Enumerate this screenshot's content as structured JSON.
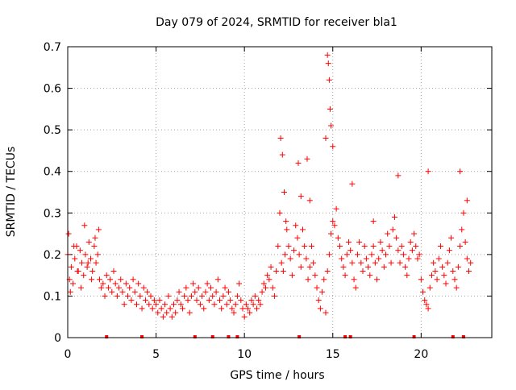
{
  "chart_data": {
    "type": "scatter",
    "title": "Day 079 of 2024, SRMTID for receiver bla1",
    "xlabel": "GPS time / hours",
    "ylabel": "SRMTID / TECUs",
    "xlim": [
      0,
      24
    ],
    "ylim": [
      0,
      0.7
    ],
    "xticks": [
      0,
      5,
      10,
      15,
      20
    ],
    "xtick_labels": [
      "0",
      "5",
      "10",
      "15",
      "20"
    ],
    "yticks": [
      0,
      0.1,
      0.2,
      0.3,
      0.4,
      0.5,
      0.6,
      0.7
    ],
    "ytick_labels": [
      "0",
      "0.1",
      "0.2",
      "0.3",
      "0.4",
      "0.5",
      "0.6",
      "0.7"
    ],
    "grid": true,
    "marker": "+",
    "point_color": "#ff0000",
    "series": [
      {
        "name": "SRMTID",
        "x": [
          0.0,
          0.1,
          0.2,
          0.3,
          0.4,
          0.5,
          0.6,
          0.7,
          0.8,
          0.9,
          1.0,
          1.1,
          1.2,
          1.3,
          1.4,
          1.5,
          1.6,
          1.7,
          1.8,
          1.9,
          2.0,
          2.1,
          2.2,
          2.3,
          2.4,
          2.5,
          2.6,
          2.7,
          2.8,
          2.9,
          3.0,
          3.1,
          3.2,
          3.3,
          3.4,
          3.5,
          3.6,
          3.7,
          3.8,
          3.9,
          4.0,
          4.1,
          4.2,
          4.3,
          4.4,
          4.5,
          4.6,
          4.7,
          4.8,
          4.9,
          5.0,
          5.1,
          5.2,
          5.3,
          5.4,
          5.5,
          5.6,
          5.7,
          5.8,
          5.9,
          6.0,
          6.1,
          6.2,
          6.3,
          6.4,
          6.5,
          6.6,
          6.7,
          6.8,
          6.9,
          7.0,
          7.1,
          7.2,
          7.3,
          7.4,
          7.5,
          7.6,
          7.7,
          7.8,
          7.9,
          8.0,
          8.1,
          8.2,
          8.3,
          8.4,
          8.5,
          8.6,
          8.7,
          8.8,
          8.9,
          9.0,
          9.1,
          9.2,
          9.3,
          9.4,
          9.5,
          9.6,
          9.7,
          9.8,
          9.9,
          10.0,
          10.1,
          10.2,
          10.3,
          10.4,
          10.5,
          10.6,
          10.7,
          10.8,
          10.9,
          11.0,
          11.1,
          11.2,
          11.3,
          11.4,
          11.5,
          11.6,
          11.7,
          11.8,
          11.9,
          12.0,
          12.1,
          12.2,
          12.3,
          12.4,
          12.5,
          12.6,
          12.7,
          12.8,
          12.9,
          13.0,
          13.1,
          13.2,
          13.3,
          13.4,
          13.5,
          13.6,
          13.7,
          13.8,
          13.9,
          14.0,
          14.1,
          14.2,
          14.3,
          14.4,
          14.5,
          14.6,
          14.7,
          14.8,
          14.9,
          15.0,
          15.1,
          15.2,
          15.3,
          15.4,
          15.5,
          15.6,
          15.7,
          15.8,
          15.9,
          16.0,
          16.1,
          16.2,
          16.3,
          16.4,
          16.5,
          16.6,
          16.7,
          16.8,
          16.9,
          17.0,
          17.1,
          17.2,
          17.3,
          17.4,
          17.5,
          17.6,
          17.7,
          17.8,
          17.9,
          18.0,
          18.1,
          18.2,
          18.3,
          18.4,
          18.5,
          18.6,
          18.7,
          18.8,
          18.9,
          19.0,
          19.1,
          19.2,
          19.3,
          19.4,
          19.5,
          19.6,
          19.7,
          19.8,
          19.9,
          20.0,
          20.1,
          20.2,
          20.3,
          20.4,
          20.5,
          20.6,
          20.7,
          20.8,
          20.9,
          21.0,
          21.1,
          21.2,
          21.3,
          21.4,
          21.5,
          21.6,
          21.7,
          21.8,
          21.9,
          22.0,
          22.1,
          22.2,
          22.3,
          22.4,
          22.5,
          22.6,
          22.7,
          22.8,
          0.05,
          0.15,
          0.35,
          0.55,
          0.75,
          0.95,
          1.15,
          1.35,
          1.55,
          1.75,
          12.05,
          12.15,
          12.25,
          12.35,
          13.05,
          13.2,
          13.55,
          13.7,
          14.6,
          14.7,
          14.75,
          14.8,
          14.85,
          14.9,
          15.0,
          18.7,
          20.4,
          22.2,
          22.6,
          16.1,
          17.3
        ],
        "y": [
          0.2,
          0.14,
          0.17,
          0.13,
          0.19,
          0.22,
          0.16,
          0.21,
          0.18,
          0.15,
          0.2,
          0.17,
          0.23,
          0.19,
          0.16,
          0.22,
          0.18,
          0.2,
          0.14,
          0.12,
          0.13,
          0.1,
          0.15,
          0.12,
          0.14,
          0.11,
          0.16,
          0.13,
          0.1,
          0.12,
          0.14,
          0.11,
          0.08,
          0.13,
          0.1,
          0.12,
          0.09,
          0.14,
          0.11,
          0.08,
          0.13,
          0.1,
          0.07,
          0.12,
          0.09,
          0.11,
          0.08,
          0.1,
          0.07,
          0.09,
          0.08,
          0.06,
          0.09,
          0.07,
          0.05,
          0.08,
          0.06,
          0.1,
          0.07,
          0.05,
          0.08,
          0.06,
          0.09,
          0.11,
          0.08,
          0.07,
          0.1,
          0.12,
          0.09,
          0.06,
          0.1,
          0.13,
          0.11,
          0.09,
          0.12,
          0.08,
          0.1,
          0.07,
          0.11,
          0.13,
          0.09,
          0.12,
          0.1,
          0.08,
          0.11,
          0.14,
          0.09,
          0.07,
          0.1,
          0.12,
          0.08,
          0.11,
          0.09,
          0.07,
          0.06,
          0.08,
          0.1,
          0.13,
          0.09,
          0.07,
          0.05,
          0.08,
          0.07,
          0.06,
          0.09,
          0.08,
          0.1,
          0.07,
          0.09,
          0.08,
          0.11,
          0.13,
          0.12,
          0.15,
          0.14,
          0.17,
          0.12,
          0.1,
          0.16,
          0.22,
          0.3,
          0.18,
          0.16,
          0.2,
          0.26,
          0.22,
          0.19,
          0.15,
          0.21,
          0.27,
          0.24,
          0.2,
          0.17,
          0.26,
          0.22,
          0.19,
          0.14,
          0.17,
          0.22,
          0.18,
          0.15,
          0.12,
          0.09,
          0.07,
          0.11,
          0.14,
          0.06,
          0.16,
          0.2,
          0.25,
          0.28,
          0.27,
          0.31,
          0.24,
          0.22,
          0.19,
          0.17,
          0.15,
          0.2,
          0.23,
          0.21,
          0.18,
          0.14,
          0.12,
          0.2,
          0.23,
          0.18,
          0.16,
          0.22,
          0.19,
          0.17,
          0.15,
          0.2,
          0.22,
          0.18,
          0.14,
          0.19,
          0.23,
          0.21,
          0.17,
          0.2,
          0.25,
          0.22,
          0.18,
          0.26,
          0.29,
          0.24,
          0.21,
          0.18,
          0.22,
          0.2,
          0.17,
          0.15,
          0.19,
          0.23,
          0.21,
          0.25,
          0.22,
          0.19,
          0.2,
          0.14,
          0.11,
          0.09,
          0.08,
          0.07,
          0.12,
          0.15,
          0.18,
          0.16,
          0.14,
          0.19,
          0.22,
          0.17,
          0.15,
          0.13,
          0.18,
          0.21,
          0.24,
          0.16,
          0.14,
          0.12,
          0.17,
          0.22,
          0.26,
          0.3,
          0.23,
          0.19,
          0.16,
          0.18,
          0.25,
          0.11,
          0.22,
          0.16,
          0.12,
          0.27,
          0.18,
          0.14,
          0.24,
          0.26,
          0.48,
          0.44,
          0.35,
          0.28,
          0.42,
          0.34,
          0.43,
          0.33,
          0.48,
          0.68,
          0.66,
          0.62,
          0.55,
          0.51,
          0.46,
          0.39,
          0.4,
          0.4,
          0.33,
          0.37,
          0.28
        ]
      }
    ],
    "zero_markers_x": [
      2.2,
      4.2,
      7.2,
      8.2,
      9.1,
      9.6,
      13.1,
      15.7,
      16.0,
      19.6,
      21.8,
      22.4
    ]
  }
}
